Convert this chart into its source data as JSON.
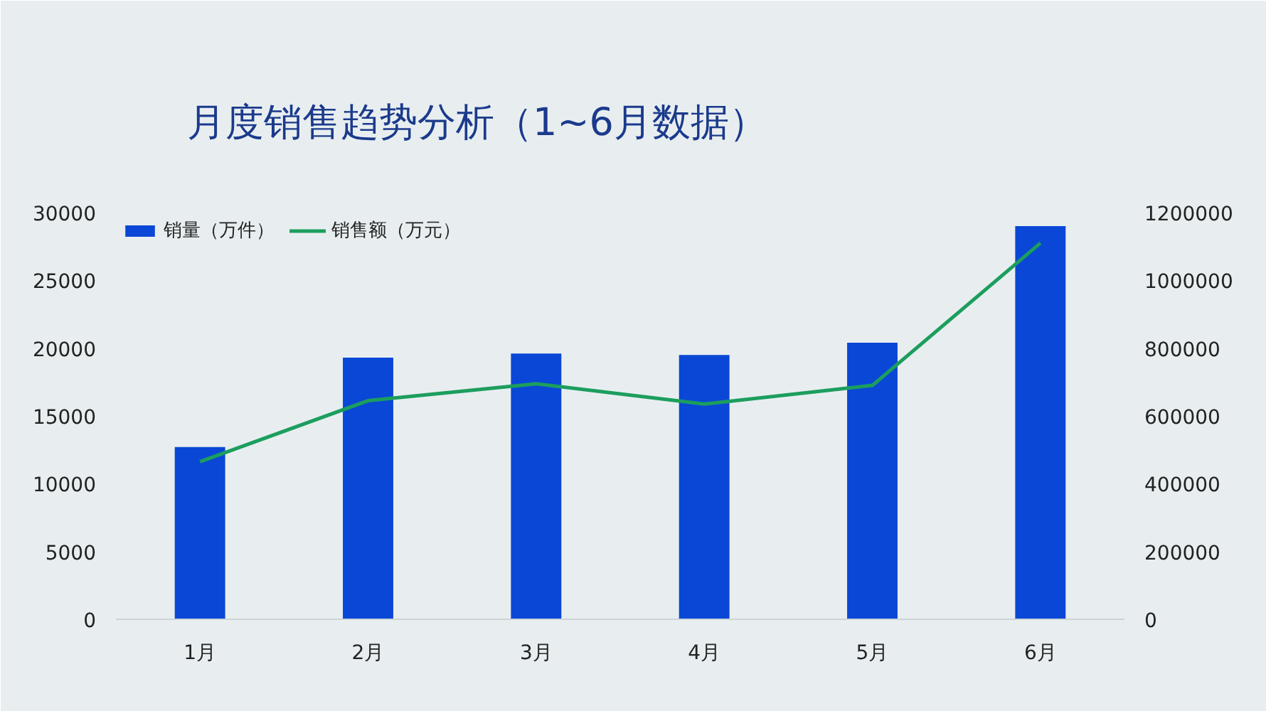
{
  "chart_data": {
    "type": "bar",
    "title": "月度销售趋势分析（1~6月数据）",
    "categories": [
      "1月",
      "2月",
      "3月",
      "4月",
      "5月",
      "6月"
    ],
    "series": [
      {
        "name": "销量（万件）",
        "color": "#0a47d6",
        "values": [
          12700,
          19300,
          19600,
          19500,
          20400,
          29000
        ]
      },
      {
        "name": "销售额（万元）",
        "type": "line",
        "axis": "y2",
        "color": "#1c9e5e",
        "values": [
          465000,
          645000,
          695000,
          635000,
          690000,
          1110000
        ]
      }
    ],
    "ylim": [
      0,
      30000
    ],
    "yticks": [
      0,
      5000,
      10000,
      15000,
      20000,
      25000,
      30000
    ],
    "y2lim": [
      0,
      1200000
    ],
    "y2ticks": [
      0,
      200000,
      400000,
      600000,
      800000,
      1000000,
      1200000
    ],
    "legend": "top left",
    "grid": false
  }
}
